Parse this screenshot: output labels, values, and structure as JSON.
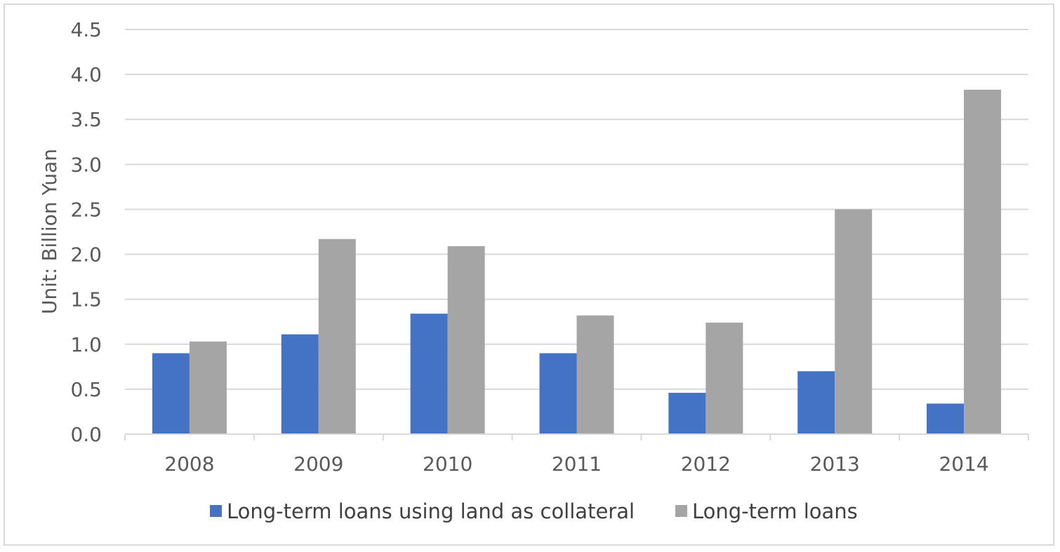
{
  "chart_data": {
    "type": "bar",
    "categories": [
      "2008",
      "2009",
      "2010",
      "2011",
      "2012",
      "2013",
      "2014"
    ],
    "series": [
      {
        "name": "Long-term loans using land as collateral",
        "color": "#4472c4",
        "values": [
          0.9,
          1.11,
          1.34,
          0.9,
          0.46,
          0.7,
          0.34
        ]
      },
      {
        "name": "Long-term loans",
        "color": "#a5a5a5",
        "values": [
          1.03,
          2.17,
          2.09,
          1.32,
          1.24,
          2.5,
          3.83
        ]
      }
    ],
    "title": "",
    "xlabel": "",
    "ylabel": "Unit: Billion  Yuan",
    "ylim": [
      0,
      4.5
    ],
    "yticks": [
      "0.0",
      "0.5",
      "1.0",
      "1.5",
      "2.0",
      "2.5",
      "3.0",
      "3.5",
      "4.0",
      "4.5"
    ],
    "grid": true,
    "legend_position": "bottom"
  }
}
